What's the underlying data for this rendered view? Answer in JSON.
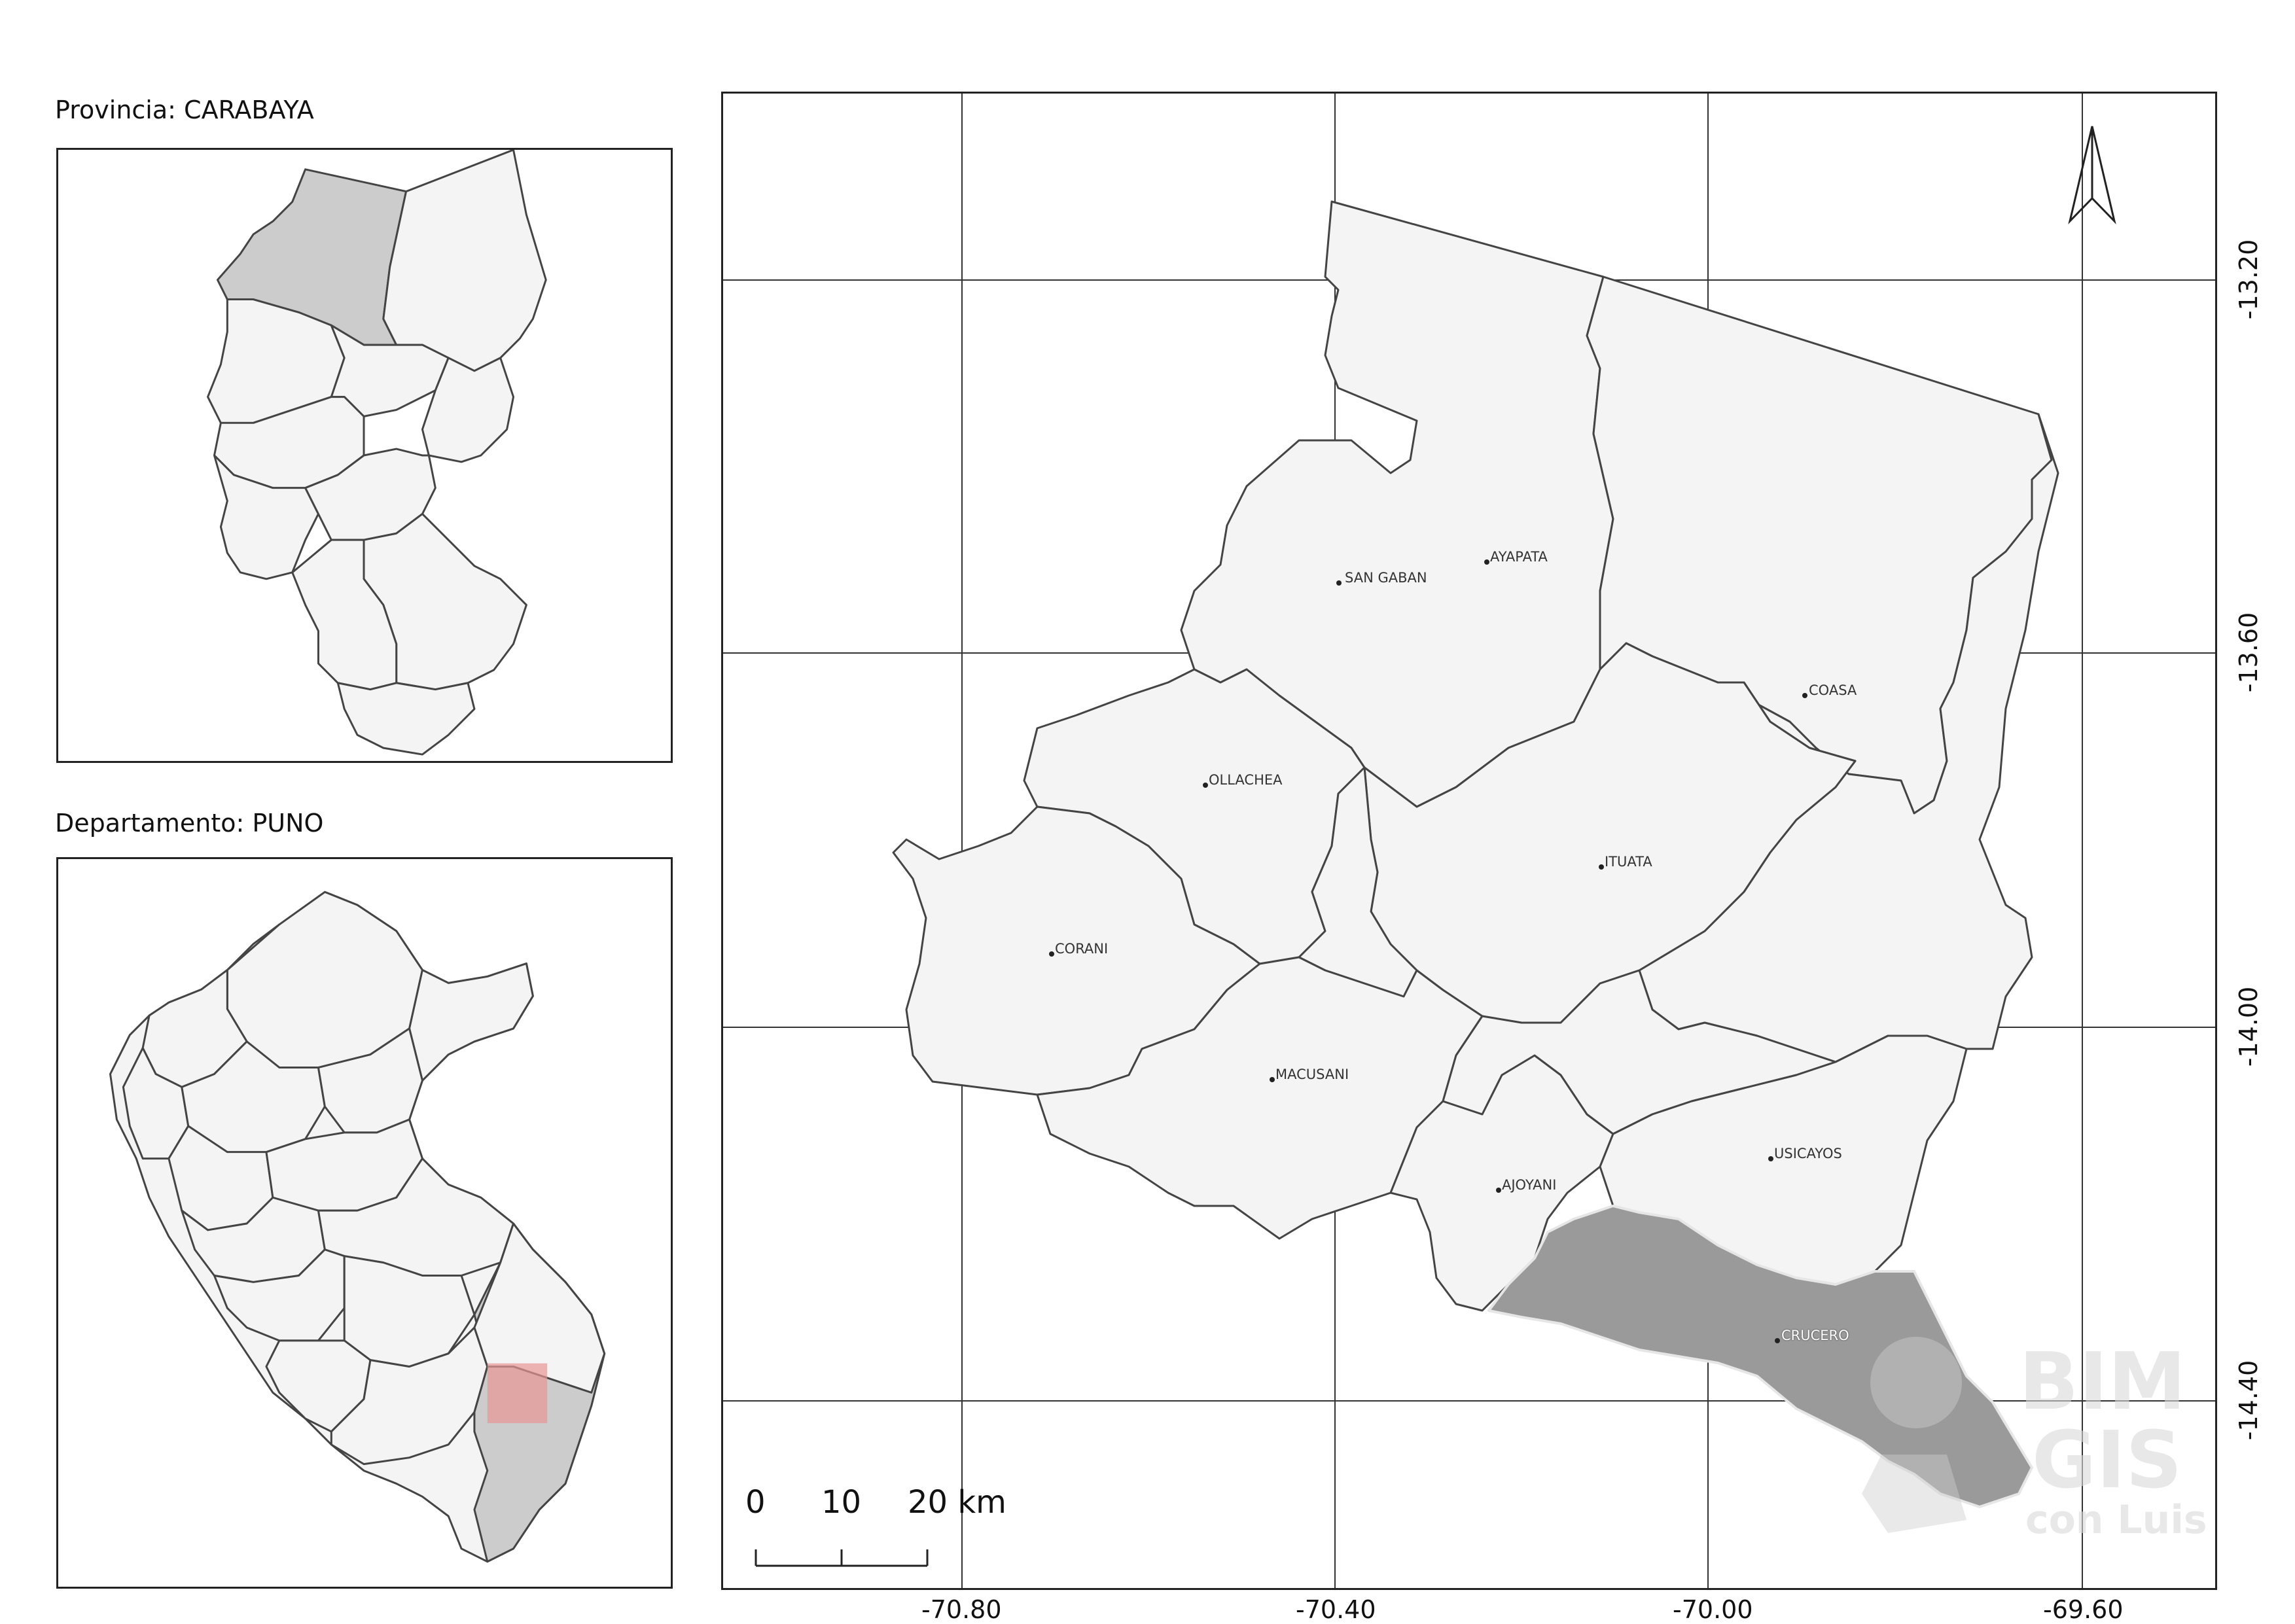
{
  "insets": {
    "province_title": "Provincia: CARABAYA",
    "department_title": "Departamento: PUNO"
  },
  "map": {
    "x_ticks": [
      "-70.80",
      "-70.40",
      "-70.00",
      "-69.60"
    ],
    "y_ticks": [
      "-13.20",
      "-13.60",
      "-14.00",
      "-14.40"
    ],
    "districts": [
      {
        "name": "SAN GABAN"
      },
      {
        "name": "AYAPATA"
      },
      {
        "name": "COASA"
      },
      {
        "name": "OLLACHEA"
      },
      {
        "name": "ITUATA"
      },
      {
        "name": "CORANI"
      },
      {
        "name": "MACUSANI"
      },
      {
        "name": "USICAYOS"
      },
      {
        "name": "AJOYANI"
      },
      {
        "name": "CRUCERO"
      }
    ],
    "highlighted_district": "CRUCERO",
    "scale_bar": {
      "labels": [
        "0",
        "10",
        "20 km"
      ]
    },
    "north_arrow": "north-arrow-icon",
    "watermark": {
      "line1": "BIM",
      "line2": "GIS",
      "line3": "con Luis"
    },
    "colors": {
      "district_fill": "#f4f4f4",
      "highlight_fill": "#9a9a9a",
      "inset_highlight": "#cccccc",
      "inset_box": "#e89595"
    }
  }
}
